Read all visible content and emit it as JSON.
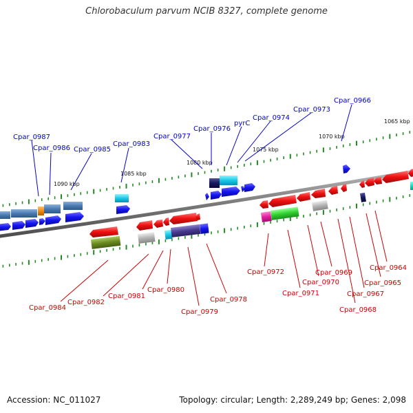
{
  "title": "Chlorobaculum parvum NCIB 8327, complete genome",
  "footer": {
    "accession": "Accession: NC_011027",
    "topology": "Topology: circular; Length: 2,289,249 bp; Genes: 2,098"
  },
  "scale_labels": [
    "1090 kbp",
    "1085 kbp",
    "1080 kbp",
    "1075 kbp",
    "1070 kbp",
    "1065 kbp"
  ],
  "top_strand_labels": [
    "Cpar_0987",
    "Cpar_0986",
    "Cpar_0985",
    "Cpar_0983",
    "Cpar_0977",
    "Cpar_0976",
    "pyrC",
    "Cpar_0974",
    "Cpar_0973",
    "Cpar_0966"
  ],
  "bottom_strand_labels": [
    "Cpar_0984",
    "Cpar_0982",
    "Cpar_0981",
    "Cpar_0980",
    "Cpar_0979",
    "Cpar_0978",
    "Cpar_0972",
    "Cpar_0971",
    "Cpar_0970",
    "Cpar_0969",
    "Cpar_0968",
    "Cpar_0967",
    "Cpar_0965",
    "Cpar_0964"
  ],
  "colors": {
    "forward_label": "#0000cc",
    "reverse_label": "#cc0000",
    "forward_gene": "#1010ee",
    "reverse_gene": "#ee1010",
    "backbone": "#808080",
    "tick": "#228b22"
  }
}
